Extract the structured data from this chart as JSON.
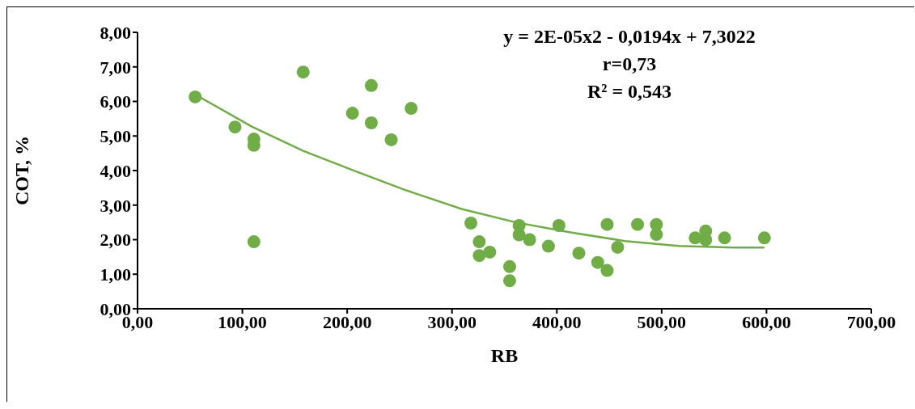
{
  "chart_data": {
    "type": "scatter",
    "xlabel": "RB",
    "ylabel": "COT, %",
    "annotations": [
      "y = 2E-05x2 - 0,0194x + 7,3022",
      "r=0,73",
      "R² = 0,543"
    ],
    "xlim": [
      0,
      700
    ],
    "xticks": [
      {
        "value": 0,
        "label": "0,00"
      },
      {
        "value": 100,
        "label": "100,00"
      },
      {
        "value": 200,
        "label": "200,00"
      },
      {
        "value": 300,
        "label": "300,00"
      },
      {
        "value": 400,
        "label": "400,00"
      },
      {
        "value": 500,
        "label": "500,00"
      },
      {
        "value": 600,
        "label": "600,00"
      },
      {
        "value": 700,
        "label": "700,00"
      }
    ],
    "ylim": [
      0,
      8
    ],
    "yticks": [
      {
        "value": 0,
        "label": "0,00"
      },
      {
        "value": 1,
        "label": "1,00"
      },
      {
        "value": 2,
        "label": "2,00"
      },
      {
        "value": 3,
        "label": "3,00"
      },
      {
        "value": 4,
        "label": "4,00"
      },
      {
        "value": 5,
        "label": "5,00"
      },
      {
        "value": 6,
        "label": "6,00"
      },
      {
        "value": 7,
        "label": "7,00"
      },
      {
        "value": 8,
        "label": "8,00"
      }
    ],
    "grid": false,
    "legend": false,
    "series": [
      {
        "color": "#70ad47",
        "marker": "circle",
        "x": [
          55,
          93,
          111,
          111,
          111,
          158,
          205,
          223,
          223,
          242,
          261,
          318,
          326,
          326,
          336,
          355,
          355,
          364,
          364,
          374,
          392,
          402,
          421,
          439,
          448,
          448,
          458,
          477,
          495,
          495,
          532,
          542,
          542,
          560,
          598
        ],
        "values": [
          6.13,
          5.26,
          4.91,
          4.73,
          1.94,
          6.85,
          5.66,
          6.46,
          5.38,
          4.89,
          5.8,
          2.48,
          1.94,
          1.54,
          1.64,
          1.22,
          0.81,
          2.41,
          2.14,
          2.0,
          1.81,
          2.41,
          1.61,
          1.34,
          1.11,
          2.44,
          1.78,
          2.44,
          2.44,
          2.15,
          2.05,
          2.25,
          2.0,
          2.05,
          2.05
        ]
      },
      {
        "type": "line",
        "color": "#70ad47",
        "line_style": "solid",
        "marker": "none",
        "x": [
          55,
          109,
          158,
          208,
          257,
          309,
          361,
          413,
          465,
          516,
          568,
          598
        ],
        "values": [
          6.2,
          5.27,
          4.57,
          3.98,
          3.42,
          2.89,
          2.5,
          2.21,
          1.96,
          1.82,
          1.77,
          1.77
        ]
      }
    ]
  }
}
